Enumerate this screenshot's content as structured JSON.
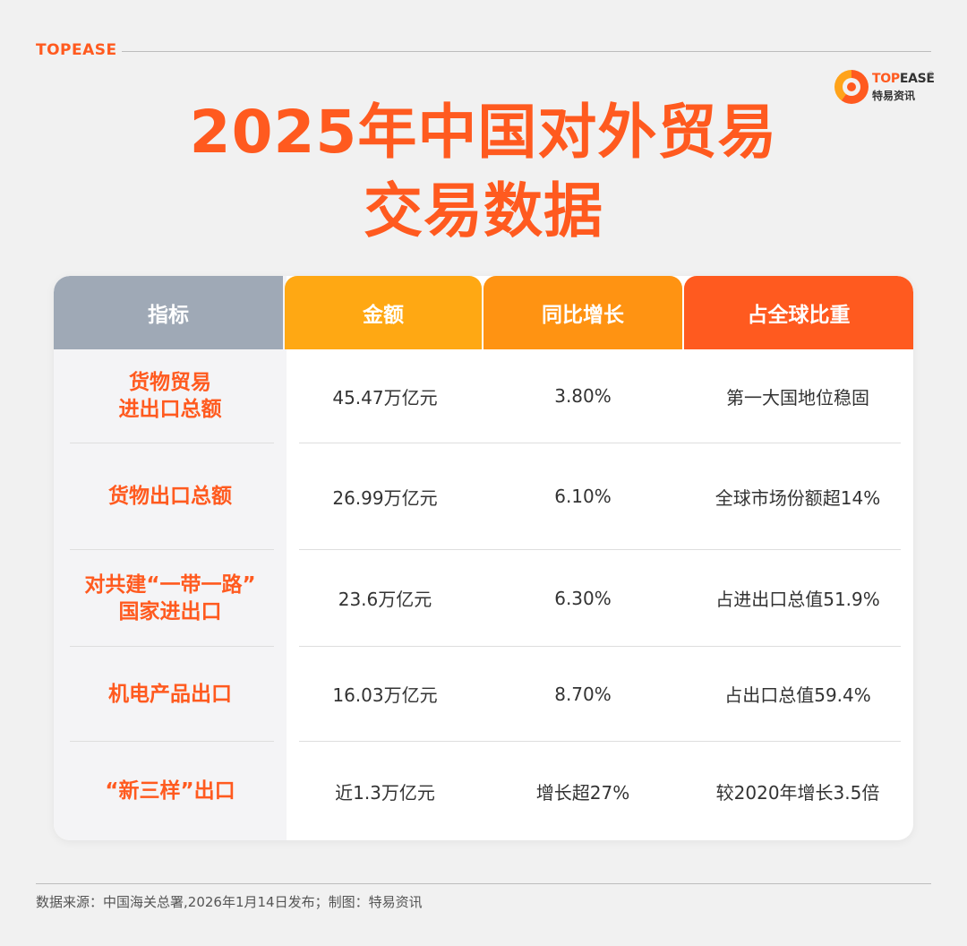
{
  "brand": "TOPEASE",
  "logo": {
    "name_accent": "TOP",
    "name_rest": "EASE",
    "reg": "®",
    "subtitle": "特易资讯"
  },
  "title": {
    "line1": "2025年中国对外贸易",
    "line2": "交易数据"
  },
  "table": {
    "headers": [
      "指标",
      "金额",
      "同比增长",
      "占全球比重"
    ],
    "header_colors": [
      "#9fa9b6",
      "#ffa813",
      "#ff9312",
      "#ff5a1f"
    ],
    "rows": [
      {
        "indicator": [
          "货物贸易",
          "进出口总额"
        ],
        "amount": "45.47万亿元",
        "growth": "3.80%",
        "share": "第一大国地位稳固"
      },
      {
        "indicator": [
          "货物出口总额"
        ],
        "amount": "26.99万亿元",
        "growth": "6.10%",
        "share": "全球市场份额超14%"
      },
      {
        "indicator": [
          "对共建“一带一路”",
          "国家进出口"
        ],
        "amount": "23.6万亿元",
        "growth": "6.30%",
        "share": "占进出口总值51.9%"
      },
      {
        "indicator": [
          "机电产品出口"
        ],
        "amount": "16.03万亿元",
        "growth": "8.70%",
        "share": "占出口总值59.4%"
      },
      {
        "indicator": [
          "“新三样”出口"
        ],
        "amount": "近1.3万亿元",
        "growth": "增长超27%",
        "share": "较2020年增长3.5倍"
      }
    ]
  },
  "footer": "数据来源：中国海关总署,2026年1月14日发布；制图：特易资讯",
  "colors": {
    "accent": "#ff5a1f",
    "background": "#f1f1f1"
  }
}
